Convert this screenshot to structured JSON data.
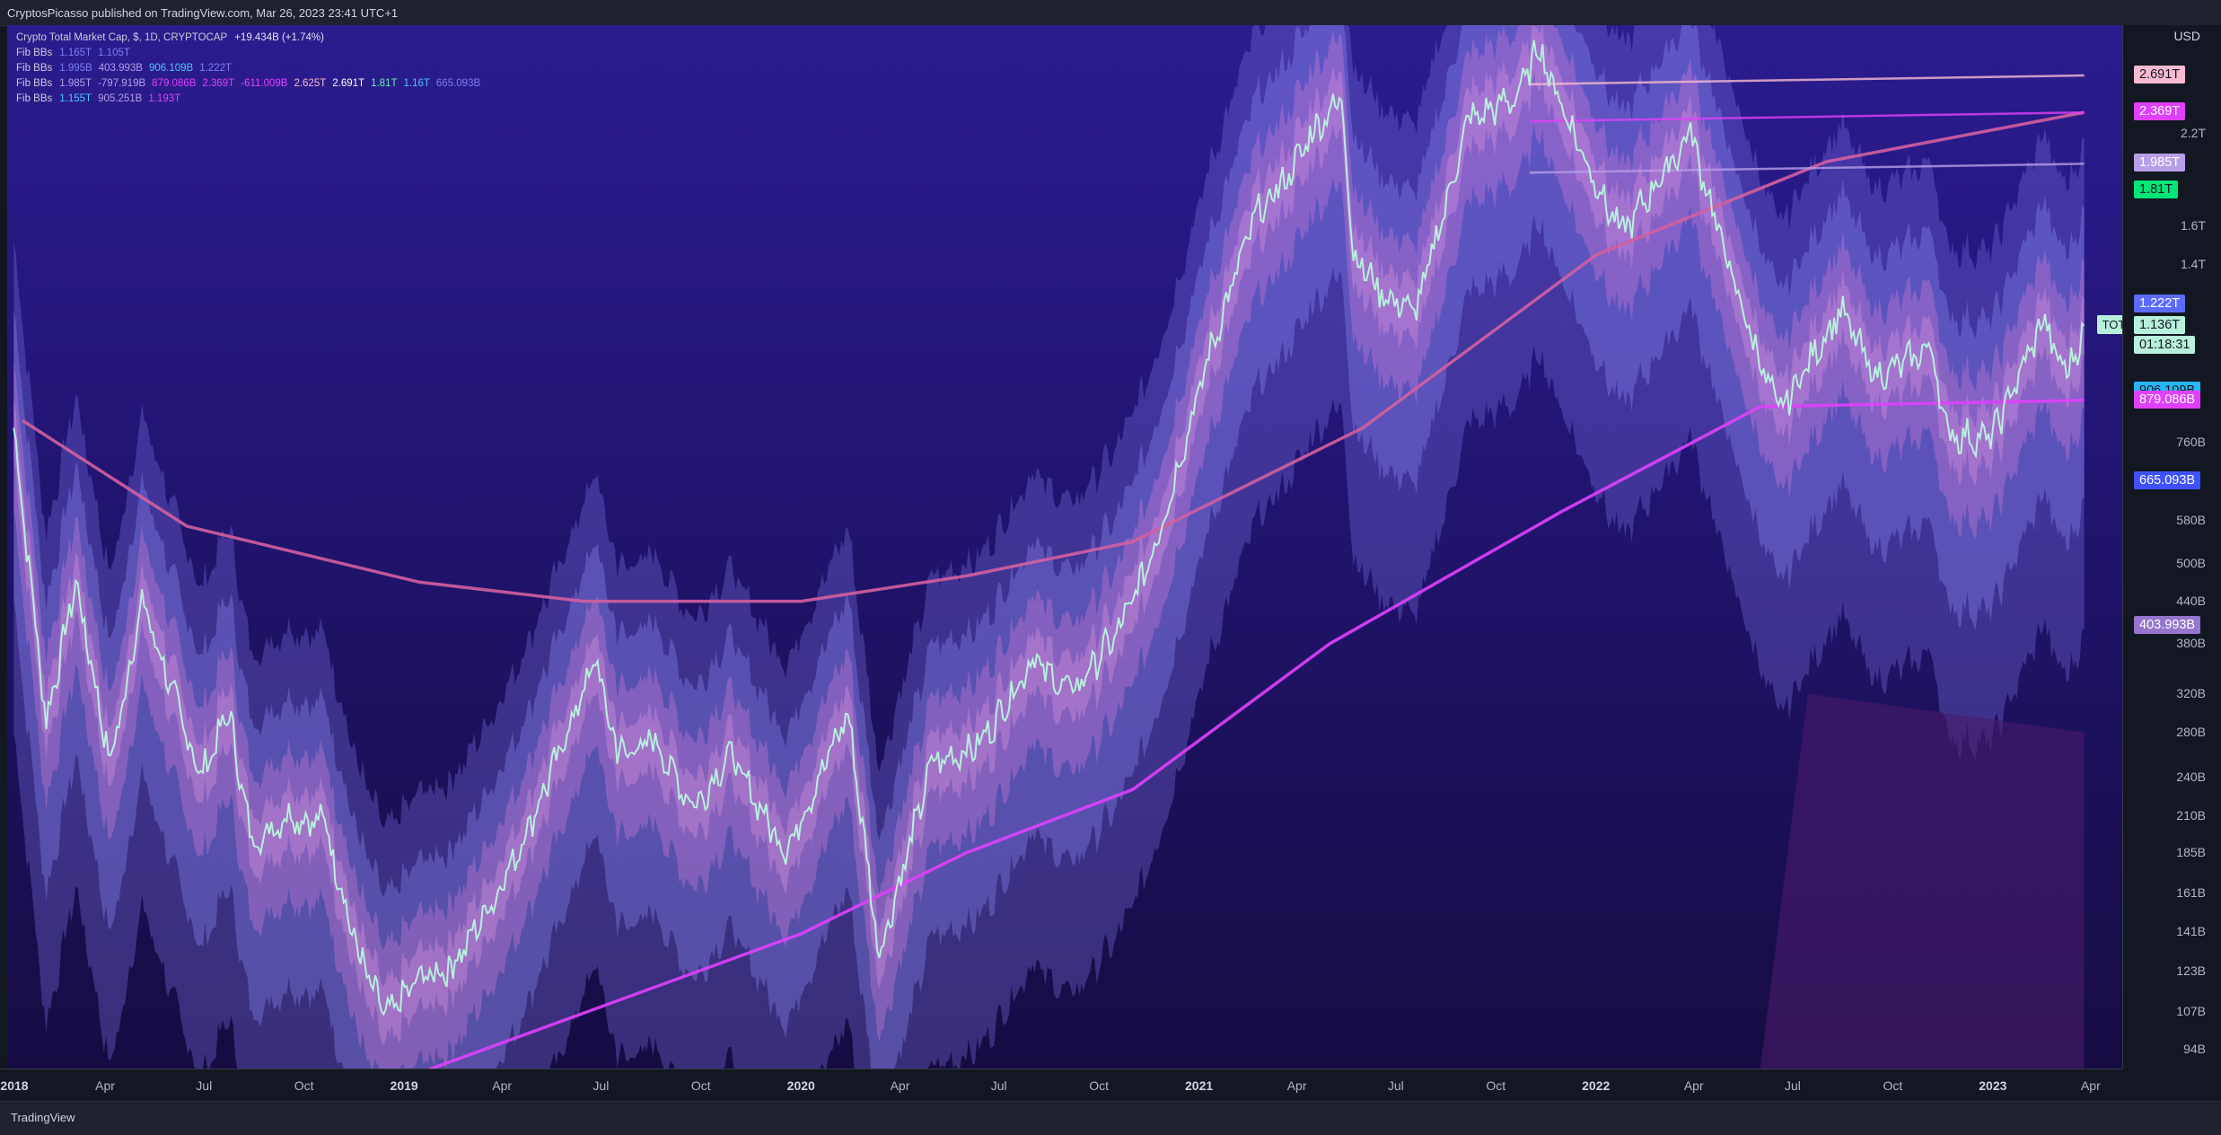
{
  "header": "CryptosPicasso published on TradingView.com, Mar 26, 2023 23:41 UTC+1",
  "legend": [
    {
      "name": "Crypto Total Market Cap, $, 1D, CRYPTOCAP",
      "values": [
        {
          "text": "+19.434B (+1.74%)",
          "color": "#e0e3eb"
        }
      ],
      "main": true
    },
    {
      "name": "Fib BBs",
      "values": [
        {
          "text": "1.165T",
          "color": "#7b7df5"
        },
        {
          "text": "1.105T",
          "color": "#7b7df5"
        }
      ]
    },
    {
      "name": "Fib BBs",
      "values": [
        {
          "text": "1.995B",
          "color": "#7b7df5"
        },
        {
          "text": "403.993B",
          "color": "#b79ee8"
        },
        {
          "text": "906.109B",
          "color": "#4fc3f7"
        },
        {
          "text": "1.222T",
          "color": "#7b7df5"
        }
      ]
    },
    {
      "name": "Fib BBs",
      "values": [
        {
          "text": "1.985T",
          "color": "#b79ee8"
        },
        {
          "text": "-797.919B",
          "color": "#b79ee8"
        },
        {
          "text": "879.086B",
          "color": "#e040fb"
        },
        {
          "text": "2.369T",
          "color": "#e040fb"
        },
        {
          "text": "-611.009B",
          "color": "#e040fb"
        },
        {
          "text": "2.625T",
          "color": "#f8bbd0"
        },
        {
          "text": "2.691T",
          "color": "#ffffff"
        },
        {
          "text": "1.81T",
          "color": "#69f0ae"
        },
        {
          "text": "1.16T",
          "color": "#4fc3f7"
        },
        {
          "text": "665.093B",
          "color": "#7b7df5"
        }
      ]
    },
    {
      "name": "Fib BBs",
      "values": [
        {
          "text": "1.155T",
          "color": "#4fc3f7"
        },
        {
          "text": "905.251B",
          "color": "#b79ee8"
        },
        {
          "text": "1.193T",
          "color": "#e040fb"
        }
      ]
    }
  ],
  "price_axis": {
    "currency": "USD",
    "ticks": [
      "2.2T",
      "1.6T",
      "1.4T",
      "760B",
      "580B",
      "500B",
      "440B",
      "380B",
      "320B",
      "280B",
      "240B",
      "210B",
      "185B",
      "161B",
      "141B",
      "123B",
      "107B",
      "94B"
    ],
    "labels": [
      {
        "text": "2.691T",
        "bg": "#f8bbd0",
        "fg": "#131722"
      },
      {
        "text": "2.369T",
        "bg": "#e040fb",
        "fg": "#ffffff"
      },
      {
        "text": "1.985T",
        "bg": "#b79ee8",
        "fg": "#ffffff"
      },
      {
        "text": "1.81T",
        "bg": "#00e676",
        "fg": "#131722"
      },
      {
        "text": "1.222T",
        "bg": "#5c6bff",
        "fg": "#ffffff"
      },
      {
        "text": "1.136T",
        "bg": "#b7f0dc",
        "fg": "#131722"
      },
      {
        "text": "01:18:31",
        "bg": "#b7f0dc",
        "fg": "#131722"
      },
      {
        "text": "906.109B",
        "bg": "#29b6f6",
        "fg": "#131722"
      },
      {
        "text": "879.086B",
        "bg": "#e040fb",
        "fg": "#ffffff"
      },
      {
        "text": "665.093B",
        "bg": "#3f51ff",
        "fg": "#ffffff"
      },
      {
        "text": "403.993B",
        "bg": "#9575cd",
        "fg": "#ffffff"
      }
    ]
  },
  "symbol_tag": "TOTAL",
  "time_axis": [
    {
      "text": "2018",
      "year": true
    },
    {
      "text": "Apr"
    },
    {
      "text": "Jul"
    },
    {
      "text": "Oct"
    },
    {
      "text": "2019",
      "year": true
    },
    {
      "text": "Apr"
    },
    {
      "text": "Jul"
    },
    {
      "text": "Oct"
    },
    {
      "text": "2020",
      "year": true
    },
    {
      "text": "Apr"
    },
    {
      "text": "Jul"
    },
    {
      "text": "Oct"
    },
    {
      "text": "2021",
      "year": true
    },
    {
      "text": "Apr"
    },
    {
      "text": "Jul"
    },
    {
      "text": "Oct"
    },
    {
      "text": "2022",
      "year": true
    },
    {
      "text": "Apr"
    },
    {
      "text": "Jul"
    },
    {
      "text": "Oct"
    },
    {
      "text": "2023",
      "year": true
    },
    {
      "text": "Apr"
    }
  ],
  "footer": "TradingView",
  "chart_data": {
    "type": "line",
    "title": "Crypto Total Market Cap, $, 1D, CRYPTOCAP",
    "scale": "log",
    "ylim_usd": [
      88000000000,
      3200000000000
    ],
    "xlim": [
      "2018-01-01",
      "2023-04-30"
    ],
    "colors": {
      "background_top": "#2a1b8c",
      "background_bottom": "#1a0f4a",
      "price": "#b7f0dc",
      "sma_magenta": "#e040fb",
      "sma_pink": "#d35fa0"
    },
    "series": [
      {
        "name": "TOTAL",
        "points": [
          [
            "2018-01-07",
            800000000000
          ],
          [
            "2018-02-06",
            290000000000
          ],
          [
            "2018-03-05",
            470000000000
          ],
          [
            "2018-04-06",
            250000000000
          ],
          [
            "2018-05-05",
            440000000000
          ],
          [
            "2018-06-28",
            240000000000
          ],
          [
            "2018-07-24",
            300000000000
          ],
          [
            "2018-08-14",
            190000000000
          ],
          [
            "2018-09-15",
            210000000000
          ],
          [
            "2018-10-20",
            205000000000
          ],
          [
            "2018-11-20",
            130000000000
          ],
          [
            "2018-12-15",
            105000000000
          ],
          [
            "2019-01-15",
            120000000000
          ],
          [
            "2019-02-15",
            125000000000
          ],
          [
            "2019-04-05",
            170000000000
          ],
          [
            "2019-05-15",
            240000000000
          ],
          [
            "2019-06-26",
            360000000000
          ],
          [
            "2019-07-16",
            260000000000
          ],
          [
            "2019-08-20",
            270000000000
          ],
          [
            "2019-09-25",
            215000000000
          ],
          [
            "2019-10-27",
            260000000000
          ],
          [
            "2019-12-18",
            185000000000
          ],
          [
            "2020-02-13",
            300000000000
          ],
          [
            "2020-03-13",
            130000000000
          ],
          [
            "2020-04-30",
            250000000000
          ],
          [
            "2020-06-15",
            270000000000
          ],
          [
            "2020-08-01",
            360000000000
          ],
          [
            "2020-09-05",
            320000000000
          ],
          [
            "2020-10-21",
            400000000000
          ],
          [
            "2020-11-25",
            550000000000
          ],
          [
            "2021-01-08",
            1000000000000
          ],
          [
            "2021-02-21",
            1650000000000
          ],
          [
            "2021-03-15",
            1800000000000
          ],
          [
            "2021-04-15",
            2200000000000
          ],
          [
            "2021-05-12",
            2500000000000
          ],
          [
            "2021-05-23",
            1450000000000
          ],
          [
            "2021-06-22",
            1250000000000
          ],
          [
            "2021-07-20",
            1200000000000
          ],
          [
            "2021-09-06",
            2300000000000
          ],
          [
            "2021-10-20",
            2500000000000
          ],
          [
            "2021-11-09",
            2950000000000
          ],
          [
            "2021-12-20",
            2050000000000
          ],
          [
            "2022-01-24",
            1550000000000
          ],
          [
            "2022-03-29",
            2200000000000
          ],
          [
            "2022-05-12",
            1250000000000
          ],
          [
            "2022-06-18",
            840000000000
          ],
          [
            "2022-08-14",
            1200000000000
          ],
          [
            "2022-09-15",
            950000000000
          ],
          [
            "2022-11-05",
            1050000000000
          ],
          [
            "2022-11-21",
            780000000000
          ],
          [
            "2022-12-30",
            770000000000
          ],
          [
            "2023-02-16",
            1150000000000
          ],
          [
            "2023-03-10",
            950000000000
          ],
          [
            "2023-03-26",
            1136000000000
          ]
        ]
      },
      {
        "name": "Fib BBs",
        "points": [
          [
            "2018-01-15",
            820000000000
          ],
          [
            "2018-06-15",
            570000000000
          ],
          [
            "2019-01-15",
            470000000000
          ],
          [
            "2019-06-15",
            440000000000
          ],
          [
            "2020-01-01",
            440000000000
          ],
          [
            "2020-06-01",
            480000000000
          ],
          [
            "2020-11-01",
            540000000000
          ],
          [
            "2021-06-01",
            800000000000
          ],
          [
            "2022-01-01",
            1450000000000
          ],
          [
            "2022-08-01",
            2000000000000
          ],
          [
            "2023-03-26",
            2369000000000
          ]
        ]
      },
      {
        "name": "Fib BBs",
        "points": [
          [
            "2019-01-01",
            85000000000
          ],
          [
            "2020-01-01",
            140000000000
          ],
          [
            "2020-06-01",
            185000000000
          ],
          [
            "2020-11-01",
            230000000000
          ],
          [
            "2021-05-01",
            380000000000
          ],
          [
            "2021-12-01",
            600000000000
          ],
          [
            "2022-06-01",
            860000000000
          ],
          [
            "2023-03-26",
            879086000000
          ]
        ]
      }
    ]
  }
}
